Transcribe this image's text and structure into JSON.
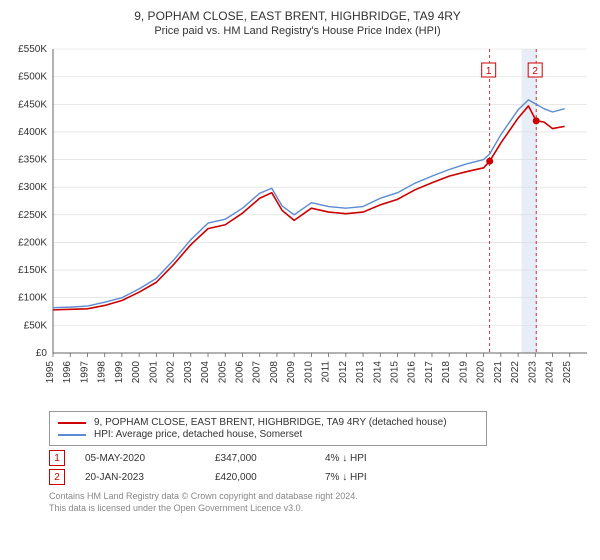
{
  "title": "9, POPHAM CLOSE, EAST BRENT, HIGHBRIDGE, TA9 4RY",
  "subtitle": "Price paid vs. HM Land Registry's House Price Index (HPI)",
  "chart": {
    "type": "line",
    "background_color": "#ffffff",
    "grid_color": "#d9d9d9",
    "axis_color": "#666666",
    "x": {
      "min": 1995,
      "max": 2026,
      "ticks": [
        1995,
        1996,
        1997,
        1998,
        1999,
        2000,
        2001,
        2002,
        2003,
        2004,
        2005,
        2006,
        2007,
        2008,
        2009,
        2010,
        2011,
        2012,
        2013,
        2014,
        2015,
        2016,
        2017,
        2018,
        2019,
        2020,
        2021,
        2022,
        2023,
        2024,
        2025
      ]
    },
    "y": {
      "min": 0,
      "max": 550000,
      "tick_step": 50000,
      "labels": [
        "£0",
        "£50K",
        "£100K",
        "£150K",
        "£200K",
        "£250K",
        "£300K",
        "£350K",
        "£400K",
        "£450K",
        "£500K",
        "£550K"
      ]
    },
    "series": [
      {
        "name": "property",
        "color": "#cc0000",
        "width": 1.6,
        "points": [
          [
            1995,
            78
          ],
          [
            1996,
            79
          ],
          [
            1997,
            80
          ],
          [
            1998,
            86
          ],
          [
            1999,
            95
          ],
          [
            2000,
            110
          ],
          [
            2001,
            128
          ],
          [
            2002,
            160
          ],
          [
            2003,
            196
          ],
          [
            2004,
            225
          ],
          [
            2005,
            232
          ],
          [
            2006,
            253
          ],
          [
            2007,
            280
          ],
          [
            2007.7,
            290
          ],
          [
            2008.3,
            258
          ],
          [
            2009,
            240
          ],
          [
            2010,
            262
          ],
          [
            2011,
            255
          ],
          [
            2012,
            252
          ],
          [
            2013,
            255
          ],
          [
            2014,
            268
          ],
          [
            2015,
            278
          ],
          [
            2016,
            295
          ],
          [
            2017,
            308
          ],
          [
            2018,
            320
          ],
          [
            2019,
            328
          ],
          [
            2020,
            335
          ],
          [
            2020.35,
            347
          ],
          [
            2021,
            380
          ],
          [
            2022,
            425
          ],
          [
            2022.6,
            447
          ],
          [
            2023.05,
            420
          ],
          [
            2023.5,
            418
          ],
          [
            2024,
            406
          ],
          [
            2024.7,
            410
          ]
        ]
      },
      {
        "name": "hpi",
        "color": "#5b8bd4",
        "width": 1.4,
        "points": [
          [
            1995,
            82
          ],
          [
            1996,
            83
          ],
          [
            1997,
            85
          ],
          [
            1998,
            92
          ],
          [
            1999,
            100
          ],
          [
            2000,
            116
          ],
          [
            2001,
            135
          ],
          [
            2002,
            168
          ],
          [
            2003,
            205
          ],
          [
            2004,
            235
          ],
          [
            2005,
            242
          ],
          [
            2006,
            262
          ],
          [
            2007,
            289
          ],
          [
            2007.7,
            298
          ],
          [
            2008.3,
            266
          ],
          [
            2009,
            250
          ],
          [
            2010,
            272
          ],
          [
            2011,
            265
          ],
          [
            2012,
            262
          ],
          [
            2013,
            265
          ],
          [
            2014,
            280
          ],
          [
            2015,
            290
          ],
          [
            2016,
            307
          ],
          [
            2017,
            320
          ],
          [
            2018,
            332
          ],
          [
            2019,
            342
          ],
          [
            2020,
            350
          ],
          [
            2020.35,
            360
          ],
          [
            2021,
            395
          ],
          [
            2022,
            440
          ],
          [
            2022.6,
            458
          ],
          [
            2023.05,
            450
          ],
          [
            2023.5,
            442
          ],
          [
            2024,
            436
          ],
          [
            2024.7,
            442
          ]
        ]
      }
    ],
    "sale_markers": [
      {
        "n": "1",
        "year": 2020.35,
        "price": 347
      },
      {
        "n": "2",
        "year": 2023.05,
        "price": 420
      }
    ],
    "band": {
      "from": 2022.2,
      "to": 2023.1,
      "color": "#e8eef7"
    },
    "dash_color": "#cc0000"
  },
  "legend": [
    {
      "color": "#cc0000",
      "label": "9, POPHAM CLOSE, EAST BRENT, HIGHBRIDGE, TA9 4RY (detached house)"
    },
    {
      "color": "#5b8bd4",
      "label": "HPI: Average price, detached house, Somerset"
    }
  ],
  "transactions": [
    {
      "n": "1",
      "date": "05-MAY-2020",
      "price": "£347,000",
      "diff": "4% ↓ HPI"
    },
    {
      "n": "2",
      "date": "20-JAN-2023",
      "price": "£420,000",
      "diff": "7% ↓ HPI"
    }
  ],
  "footer": {
    "l1": "Contains HM Land Registry data © Crown copyright and database right 2024.",
    "l2": "This data is licensed under the Open Government Licence v3.0."
  }
}
